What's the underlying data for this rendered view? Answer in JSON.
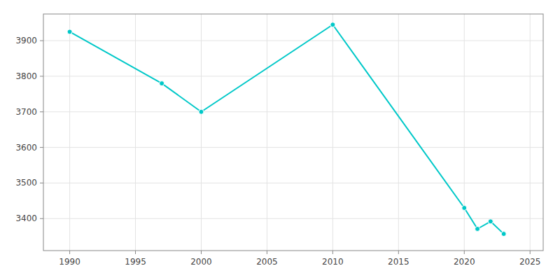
{
  "chart_data": {
    "type": "line",
    "x": [
      1990,
      1997,
      2000,
      2010,
      2020,
      2021,
      2022,
      2023
    ],
    "values": [
      3925,
      3780,
      3700,
      3945,
      3430,
      3371,
      3392,
      3357
    ],
    "color": "#00C8C8",
    "marker": "circle",
    "xlim": [
      1988,
      2026
    ],
    "ylim": [
      3310,
      3975
    ],
    "xticks": [
      1990,
      1995,
      2000,
      2005,
      2010,
      2015,
      2020,
      2025
    ],
    "yticks": [
      3400,
      3500,
      3600,
      3700,
      3800,
      3900
    ],
    "grid": true
  }
}
